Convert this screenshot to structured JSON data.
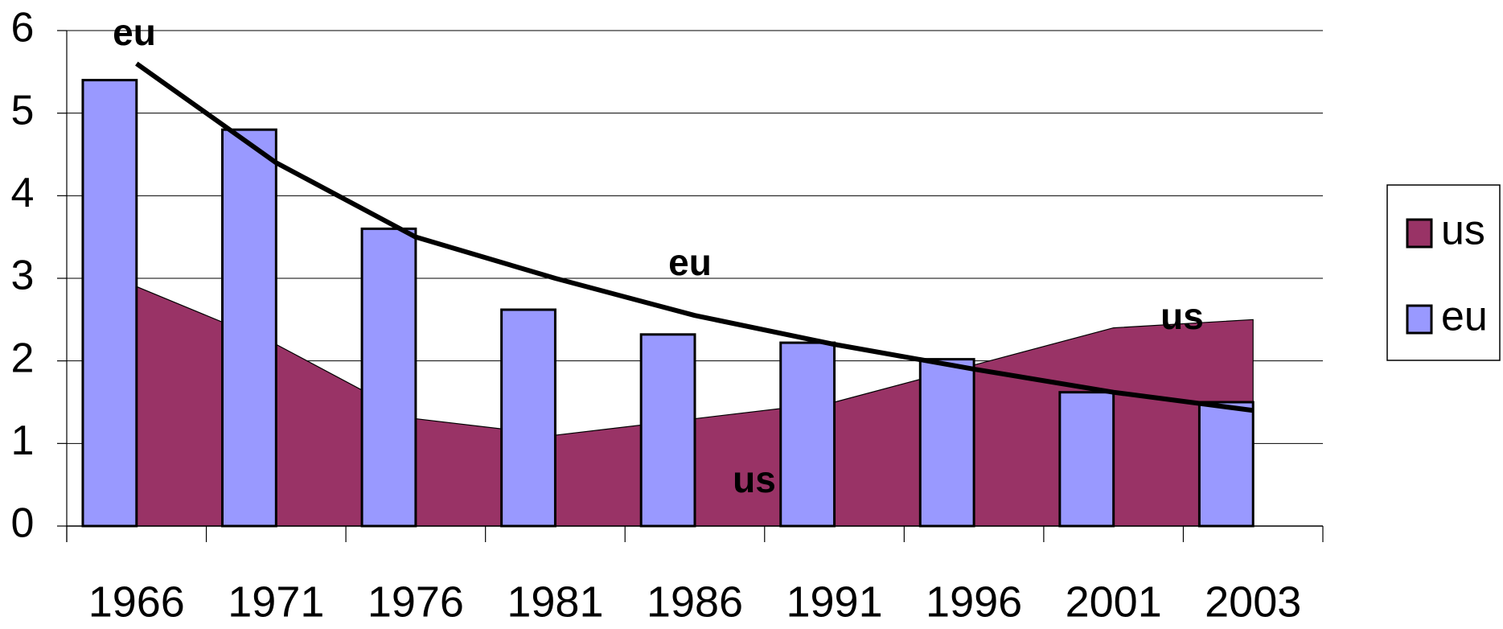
{
  "chart_data": {
    "type": "bar_area",
    "categories": [
      "1966",
      "1971",
      "1976",
      "1981",
      "1986",
      "1991",
      "1996",
      "2001",
      "2003"
    ],
    "series": [
      {
        "name": "us",
        "color": "#993366",
        "kind": "area",
        "values": [
          2.9,
          2.2,
          1.3,
          1.1,
          1.3,
          1.5,
          1.95,
          2.4,
          2.5
        ]
      },
      {
        "name": "eu",
        "color": "#9999ff",
        "kind": "bar",
        "values": [
          5.4,
          4.8,
          3.6,
          2.62,
          2.32,
          2.22,
          2.02,
          1.62,
          1.5
        ]
      }
    ],
    "trendline": {
      "color": "#000000",
      "values": [
        5.6,
        4.4,
        3.5,
        3.0,
        2.55,
        2.2,
        1.9,
        1.62,
        1.4
      ]
    },
    "annotations": [
      "eu",
      "eu",
      "us",
      "us"
    ],
    "ylim": [
      0,
      6
    ],
    "yticks": [
      0,
      1,
      2,
      3,
      4,
      5,
      6
    ],
    "grid": true,
    "legend": "right"
  }
}
